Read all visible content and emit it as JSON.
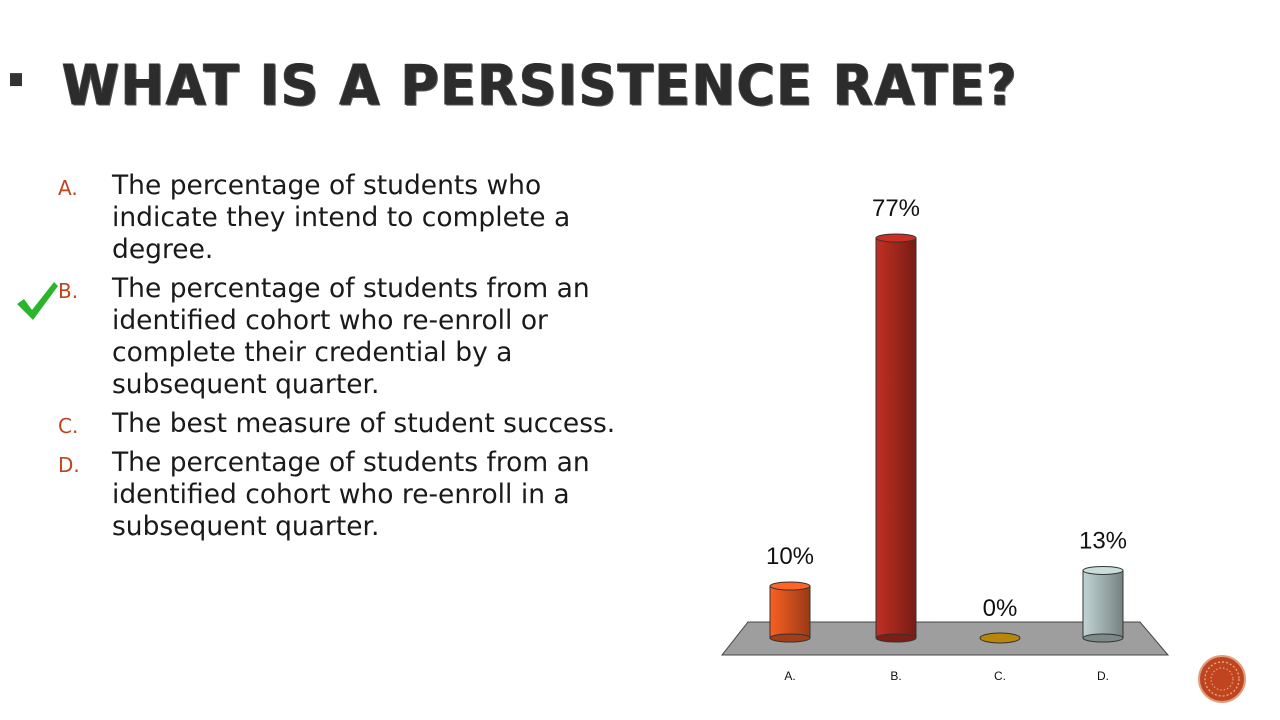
{
  "slide": {
    "title": "What is a persistence rate?"
  },
  "options": [
    {
      "letter": "A.",
      "text": "The percentage of students who indicate they intend to complete a degree."
    },
    {
      "letter": "B.",
      "text": "The percentage of students from an identified cohort who re-enroll or complete their credential by a subsequent quarter."
    },
    {
      "letter": "C.",
      "text": "The best measure of student success."
    },
    {
      "letter": "D.",
      "text": "The percentage of students from an identified cohort who re-enroll in a subsequent quarter."
    }
  ],
  "correct_marker": {
    "icon": "checkmark-icon",
    "option": "B.",
    "color": "#2bb52b"
  },
  "colors": {
    "accent": "#c0451f",
    "bar_a": "#d9531e",
    "bar_b": "#a8291e",
    "bar_c": "#b8860b",
    "bar_d": "#a8b8b8",
    "floor": "#9e9e9e"
  },
  "chart_data": {
    "type": "bar",
    "categories": [
      "A.",
      "B.",
      "C.",
      "D."
    ],
    "values": [
      10,
      77,
      0,
      13
    ],
    "data_labels": [
      "10%",
      "77%",
      "0%",
      "13%"
    ],
    "ylim": [
      0,
      77
    ],
    "grid": false,
    "style": "3d-cylinder"
  },
  "nav": {
    "icon": "next-slide-icon"
  }
}
